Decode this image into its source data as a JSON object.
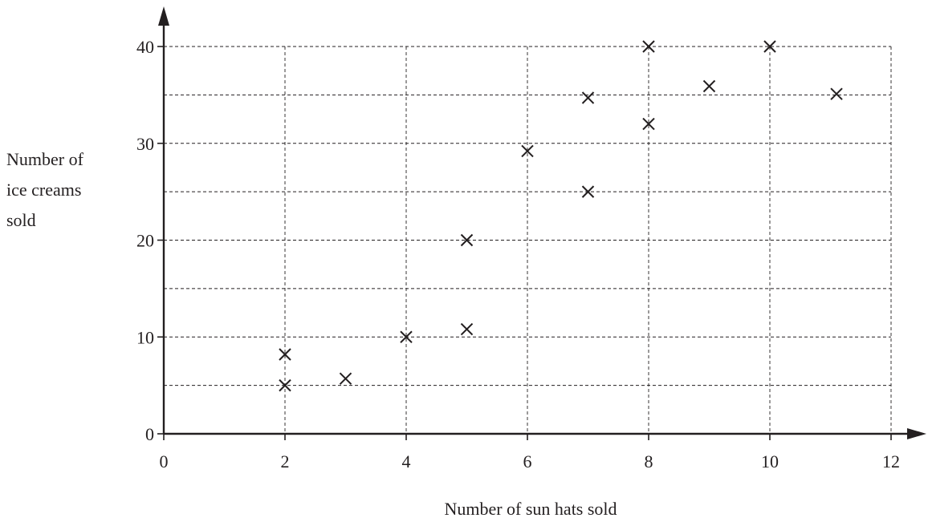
{
  "chart_data": {
    "type": "scatter",
    "xlabel": "Number of sun hats sold",
    "ylabel_lines": [
      "Number of",
      "ice creams",
      "sold"
    ],
    "xlim": [
      0,
      12
    ],
    "ylim": [
      0,
      40
    ],
    "x_ticks": [
      0,
      2,
      4,
      6,
      8,
      10,
      12
    ],
    "y_ticks": [
      0,
      10,
      20,
      30,
      40
    ],
    "x_grid_step": 2,
    "y_grid_step": 5,
    "grid": true,
    "marker": "x",
    "points": [
      {
        "x": 2,
        "y": 8.2
      },
      {
        "x": 2,
        "y": 5
      },
      {
        "x": 3,
        "y": 5.7
      },
      {
        "x": 4,
        "y": 10
      },
      {
        "x": 5,
        "y": 10.8
      },
      {
        "x": 5,
        "y": 20
      },
      {
        "x": 6,
        "y": 29.2
      },
      {
        "x": 7,
        "y": 25
      },
      {
        "x": 7,
        "y": 34.7
      },
      {
        "x": 8,
        "y": 32
      },
      {
        "x": 8,
        "y": 40
      },
      {
        "x": 9,
        "y": 35.9
      },
      {
        "x": 10,
        "y": 40
      },
      {
        "x": 11.1,
        "y": 35.1
      }
    ]
  }
}
